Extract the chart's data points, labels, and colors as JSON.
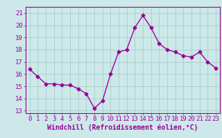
{
  "x": [
    0,
    1,
    2,
    3,
    4,
    5,
    6,
    7,
    8,
    9,
    10,
    11,
    12,
    13,
    14,
    15,
    16,
    17,
    18,
    19,
    20,
    21,
    22,
    23
  ],
  "y": [
    16.4,
    15.8,
    15.2,
    15.2,
    15.1,
    15.1,
    14.8,
    14.4,
    13.2,
    13.8,
    16.0,
    17.8,
    18.0,
    19.8,
    20.8,
    19.8,
    18.5,
    18.0,
    17.8,
    17.5,
    17.4,
    17.8,
    17.0,
    16.5
  ],
  "line_color": "#990099",
  "marker": "D",
  "marker_size": 2.5,
  "bg_color": "#cce8e8",
  "grid_color": "#aacccc",
  "ylabel_ticks": [
    13,
    14,
    15,
    16,
    17,
    18,
    19,
    20,
    21
  ],
  "xlabel": "Windchill (Refroidissement éolien,°C)",
  "xlabel_fontsize": 7,
  "tick_fontsize": 6.5,
  "ylim": [
    12.8,
    21.5
  ],
  "xlim": [
    -0.5,
    23.5
  ]
}
